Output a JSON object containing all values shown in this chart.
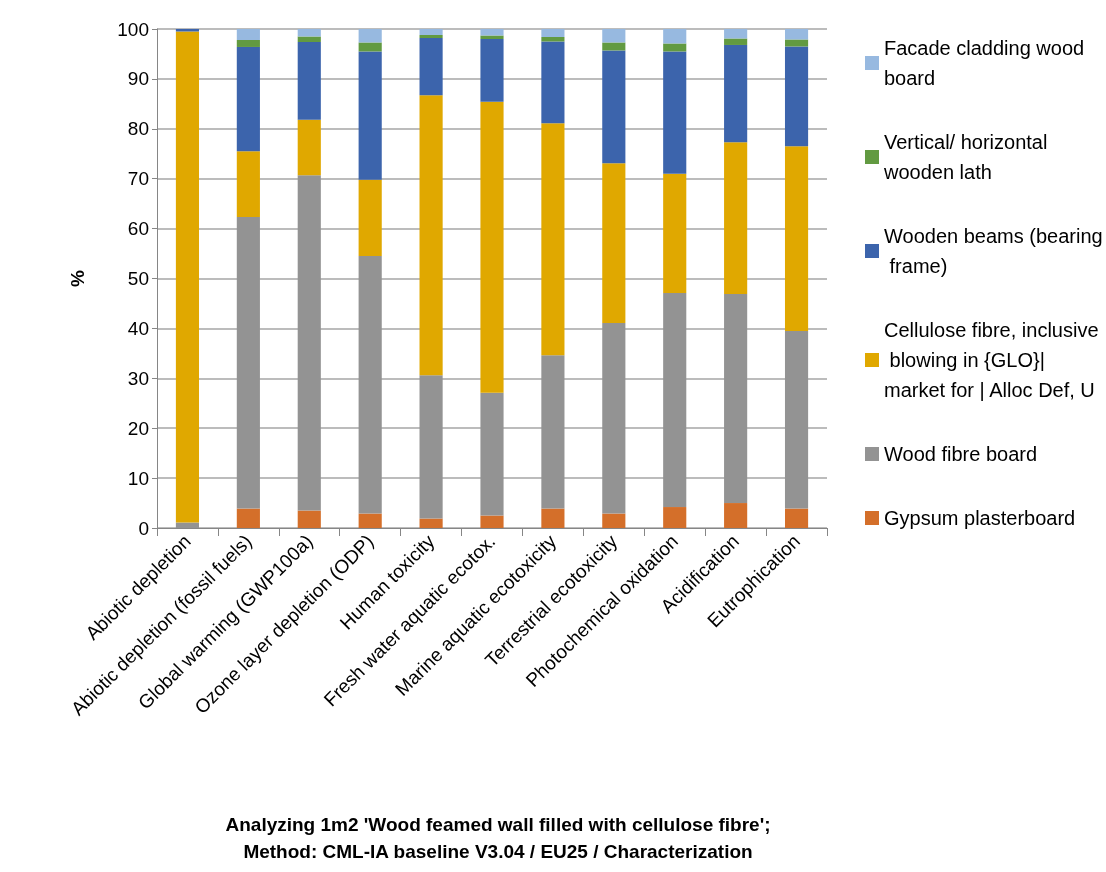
{
  "chart_data": {
    "type": "bar",
    "stacked": true,
    "title": "Analyzing 1m2 'Wood feamed wall filled with cellulose fibre';",
    "subtitle": "Method: CML-IA baseline V3.04 / EU25 / Characterization",
    "ylabel": "%",
    "categories": [
      "Abiotic depletion",
      "Abiotic depletion (fossil fuels)",
      "Global warming (GWP100a)",
      "Ozone layer depletion (ODP)",
      "Human toxicity",
      "Fresh water aquatic ecotox.",
      "Marine aquatic ecotoxicity",
      "Terrestrial ecotoxicity",
      "Photochemical oxidation",
      "Acidification",
      "Eutrophication"
    ],
    "series": [
      {
        "name": "Gypsum plasterboard",
        "color": "#d46f2a",
        "values": [
          0,
          3.9,
          3.5,
          2.9,
          1.9,
          2.5,
          3.9,
          2.9,
          4.2,
          5.0,
          3.9
        ]
      },
      {
        "name": "Wood fibre board",
        "color": "#939393",
        "values": [
          1.1,
          58.4,
          67.2,
          51.6,
          28.7,
          24.6,
          30.7,
          38.2,
          42.9,
          41.9,
          35.6
        ]
      },
      {
        "name": "Cellulose fibre, inclusive blowing in {GLO}| market for | Alloc Def, U",
        "color": "#e0a800",
        "values": [
          98.4,
          13.2,
          11.1,
          15.3,
          56.1,
          58.3,
          46.5,
          32.0,
          23.9,
          30.4,
          37.0
        ]
      },
      {
        "name": "Wooden beams (bearing frame)",
        "color": "#3c64ac",
        "values": [
          0.5,
          20.9,
          15.6,
          25.7,
          11.5,
          12.6,
          16.4,
          22.6,
          24.5,
          19.5,
          20.0
        ]
      },
      {
        "name": "Vertical/ horizontal wooden lath",
        "color": "#629a41",
        "values": [
          0,
          1.4,
          1.1,
          1.8,
          0.6,
          0.7,
          0.9,
          1.6,
          1.6,
          1.3,
          1.4
        ]
      },
      {
        "name": "Facade cladding wood board",
        "color": "#97b9e0",
        "values": [
          0,
          2.2,
          1.5,
          2.7,
          1.2,
          1.3,
          1.6,
          2.7,
          2.9,
          1.9,
          2.1
        ]
      }
    ],
    "ylim": [
      0,
      100
    ],
    "yticks": [
      0,
      10,
      20,
      30,
      40,
      50,
      60,
      70,
      80,
      90,
      100
    ],
    "grid": "y",
    "legend": "right"
  }
}
